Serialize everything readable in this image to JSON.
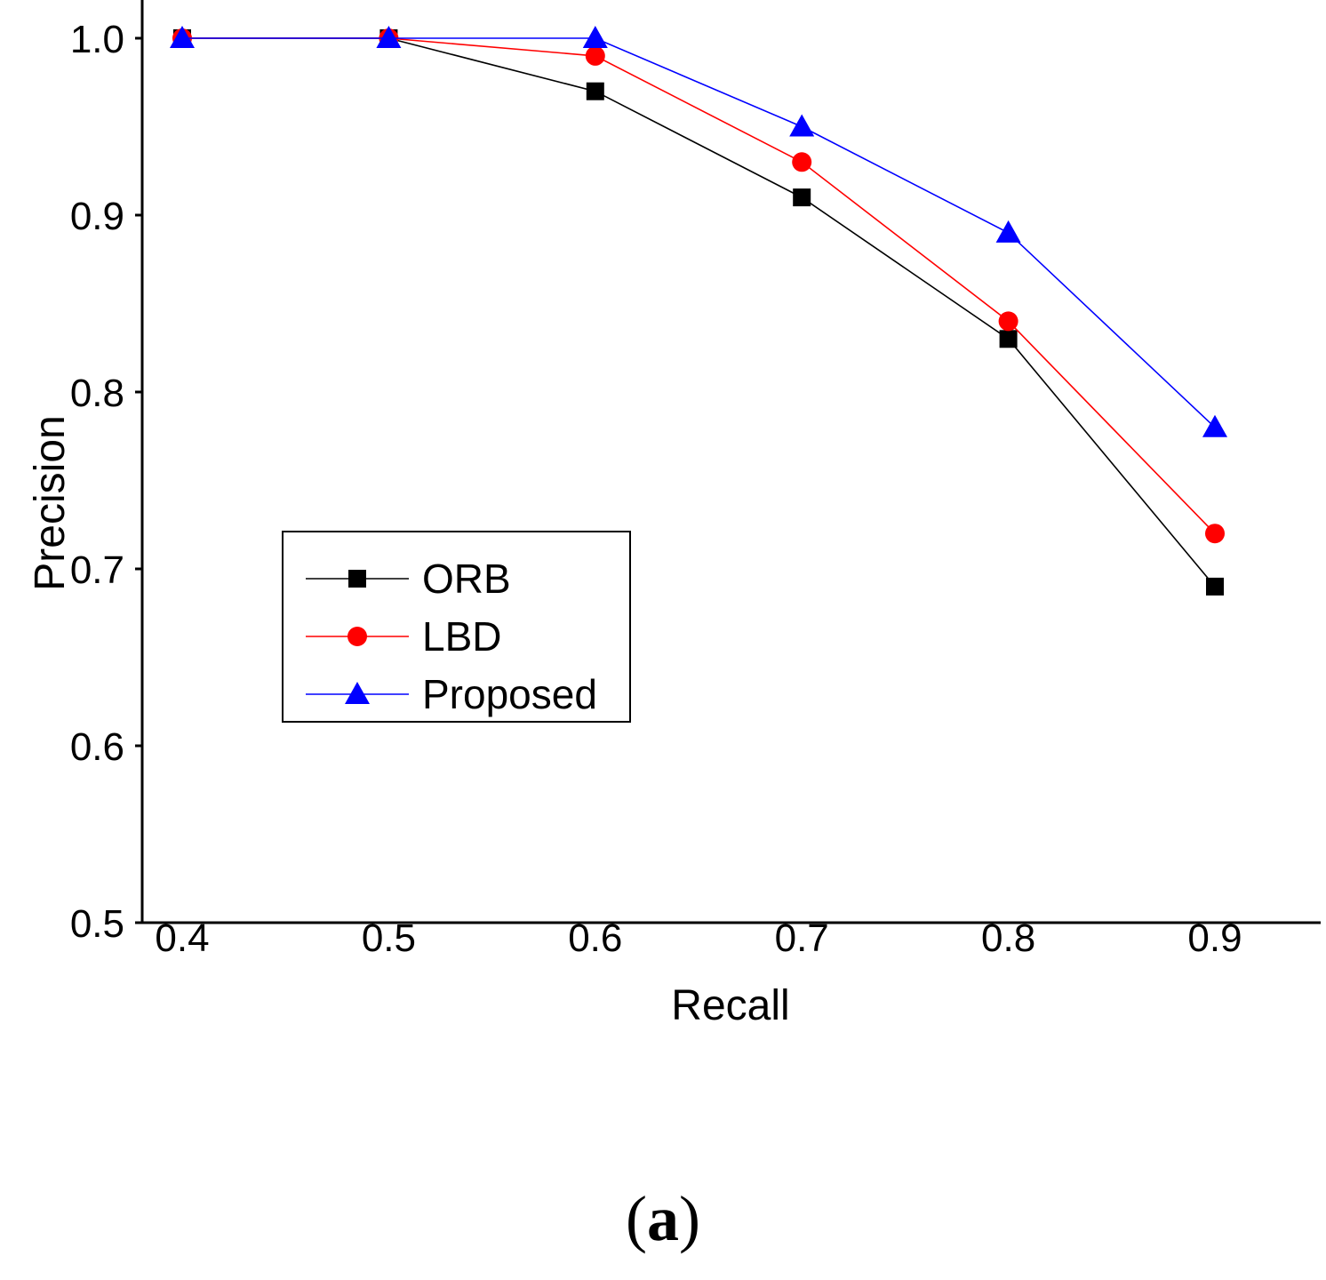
{
  "chart_data": {
    "type": "line",
    "title": "",
    "xlabel": "Recall",
    "ylabel": "Precision",
    "x": [
      0.4,
      0.5,
      0.6,
      0.7,
      0.8,
      0.9
    ],
    "x_tick_labels": [
      "0.4",
      "0.5",
      "0.6",
      "0.7",
      "0.8",
      "0.9"
    ],
    "y_tick_labels": [
      "0.5",
      "0.6",
      "0.7",
      "0.8",
      "0.9",
      "1.0"
    ],
    "xlim": [
      0.38,
      0.955
    ],
    "ylim": [
      0.5,
      1.0
    ],
    "grid": false,
    "legend_position": "center-left",
    "series": [
      {
        "name": "ORB",
        "color": "#000000",
        "marker": "square",
        "values": [
          1.0,
          1.0,
          0.97,
          0.91,
          0.83,
          0.69
        ]
      },
      {
        "name": "LBD",
        "color": "#ff0000",
        "marker": "circle",
        "values": [
          1.0,
          1.0,
          0.99,
          0.93,
          0.84,
          0.72
        ]
      },
      {
        "name": "Proposed",
        "color": "#0000ff",
        "marker": "triangle",
        "values": [
          1.0,
          1.0,
          1.0,
          0.95,
          0.89,
          0.78
        ]
      }
    ]
  },
  "caption": {
    "open": "(",
    "letter": "a",
    "close": ")"
  }
}
